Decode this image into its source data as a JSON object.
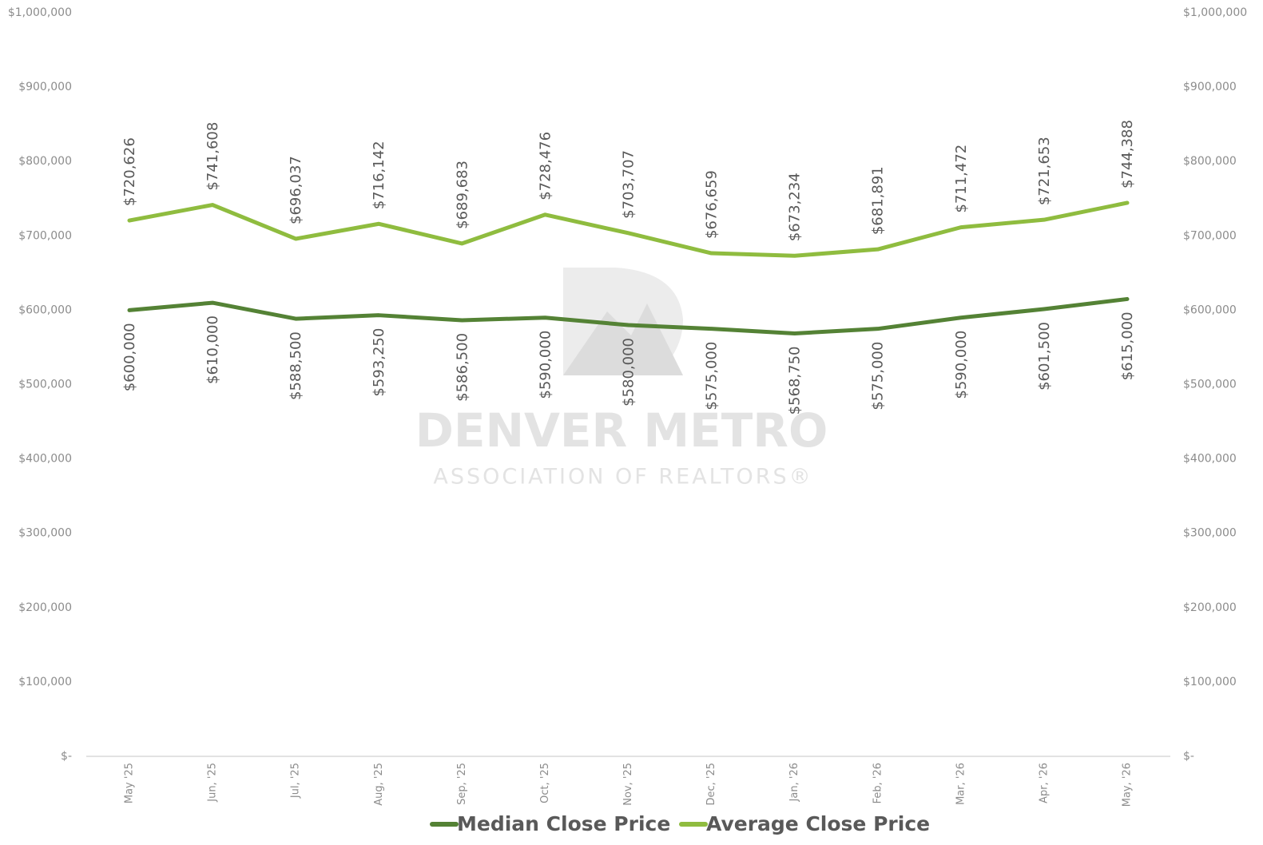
{
  "chart_data": {
    "type": "line",
    "categories": [
      "May '25",
      "Jun, '25",
      "Jul, '25",
      "Aug, '25",
      "Sep, '25",
      "Oct, '25",
      "Nov, '25",
      "Dec, '25",
      "Jan, '26",
      "Feb, '26",
      "Mar, '26",
      "Apr, '26",
      "May, '26"
    ],
    "series": [
      {
        "name": "Median Close Price",
        "color": "#548235",
        "values": [
          600000,
          610000,
          588500,
          593250,
          586500,
          590000,
          580000,
          575000,
          568750,
          575000,
          590000,
          601500,
          615000
        ],
        "value_labels": [
          "$600,000",
          "$610,000",
          "$588,500",
          "$593,250",
          "$586,500",
          "$590,000",
          "$580,000",
          "$575,000",
          "$568,750",
          "$575,000",
          "$590,000",
          "$601,500",
          "$615,000"
        ]
      },
      {
        "name": "Average Close Price",
        "color": "#8fbc3f",
        "axis": "y2",
        "values": [
          720626,
          741608,
          696037,
          716142,
          689683,
          728476,
          703707,
          676659,
          673234,
          681891,
          711472,
          721653,
          744388
        ],
        "value_labels": [
          "$720,626",
          "$741,608",
          "$696,037",
          "$716,142",
          "$689,683",
          "$728,476",
          "$703,707",
          "$676,659",
          "$673,234",
          "$681,891",
          "$711,472",
          "$721,653",
          "$744,388"
        ]
      }
    ],
    "ylim": [
      0,
      1000000
    ],
    "yticks": [
      {
        "value": 0,
        "label": "$-"
      },
      {
        "value": 100000,
        "label": "$100,000"
      },
      {
        "value": 200000,
        "label": "$200,000"
      },
      {
        "value": 300000,
        "label": "$300,000"
      },
      {
        "value": 400000,
        "label": "$400,000"
      },
      {
        "value": 500000,
        "label": "$500,000"
      },
      {
        "value": 600000,
        "label": "$600,000"
      },
      {
        "value": 700000,
        "label": "$700,000"
      },
      {
        "value": 800000,
        "label": "$800,000"
      },
      {
        "value": 900000,
        "label": "$900,000"
      },
      {
        "value": 1000000,
        "label": "$1,000,000"
      }
    ],
    "y2lim": [
      0,
      1000000
    ],
    "y2ticks": [
      {
        "value": 0,
        "label": "$-"
      },
      {
        "value": 100000,
        "label": "$100,000"
      },
      {
        "value": 200000,
        "label": "$200,000"
      },
      {
        "value": 300000,
        "label": "$300,000"
      },
      {
        "value": 400000,
        "label": "$400,000"
      },
      {
        "value": 500000,
        "label": "$500,000"
      },
      {
        "value": 600000,
        "label": "$600,000"
      },
      {
        "value": 700000,
        "label": "$700,000"
      },
      {
        "value": 800000,
        "label": "$800,000"
      },
      {
        "value": 900000,
        "label": "$900,000"
      },
      {
        "value": 1000000,
        "label": "$1,000,000"
      }
    ],
    "grid": false,
    "legend": "bottom",
    "watermark": {
      "title": "DENVER METRO",
      "subtitle": "ASSOCIATION OF REALTORS®"
    }
  }
}
